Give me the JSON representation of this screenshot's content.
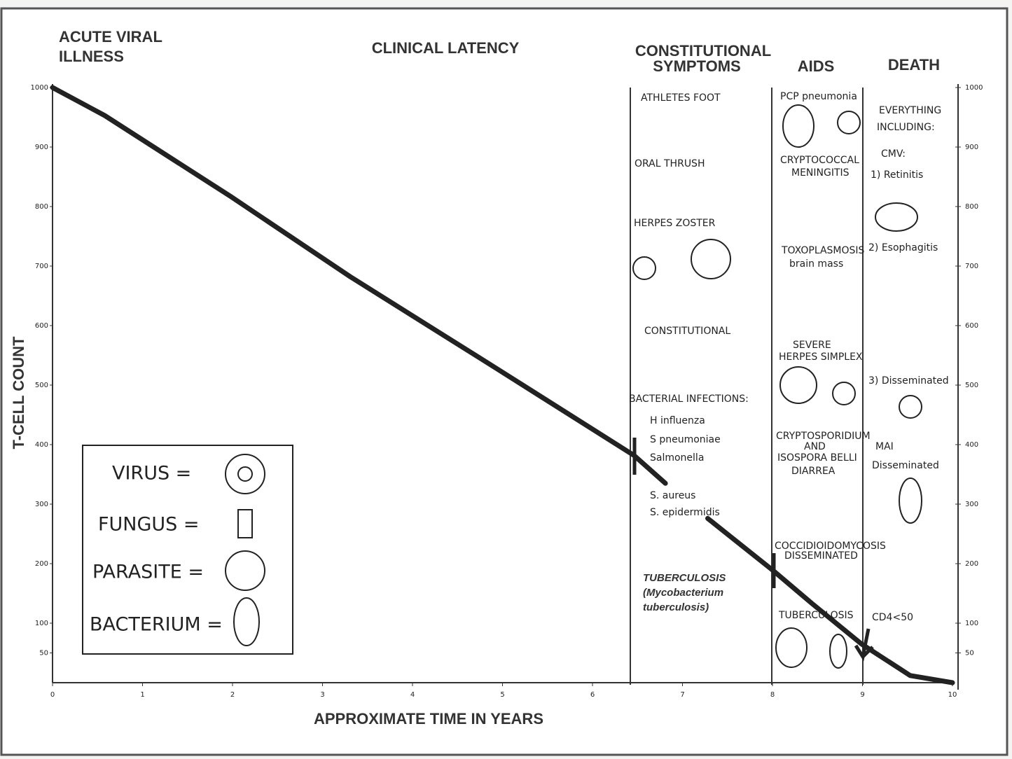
{
  "chart_data": {
    "type": "line",
    "phases": [
      "ACUTE VIRAL",
      "ILLNESS",
      "CLINICAL LATENCY",
      "CONSTITUTIONAL",
      "SYMPTOMS",
      "AIDS",
      "DEATH"
    ],
    "xlabel": "APPROXIMATE  TIME IN YEARS",
    "ylabel": "T-CELL COUNT",
    "x": [
      0,
      0.58,
      1.98,
      3.31,
      4.86,
      6.46,
      6.81,
      6.9,
      7.28,
      8.01,
      8.44,
      8.99,
      9.53,
      10
    ],
    "values": [
      1000,
      953,
      817,
      682,
      535,
      382,
      335,
      null,
      276,
      188,
      133,
      65,
      12,
      0
    ],
    "color": "#222222",
    "xlim": [
      0,
      10
    ],
    "ylim": [
      0,
      1000
    ],
    "xticks": [
      0,
      1,
      2,
      3,
      4,
      5,
      6,
      7,
      8,
      9,
      10
    ],
    "yticks": [
      50,
      100,
      200,
      300,
      400,
      500,
      600,
      700,
      800,
      900,
      1000
    ],
    "legend_box": [
      "VIRUS =",
      "FUNGUS =",
      "PARASITE =",
      "BACTERIUM ="
    ],
    "annotations": [
      "ATHLETES FOOT",
      "ORAL THRUSH",
      "HERPES ZOSTER",
      "CONSTITUTIONAL",
      "BACTERIAL INFECTIONS:",
      "H influenza",
      "S pneumoniae",
      "Salmonella",
      "S. aureus",
      "S. epidermidis",
      "TUBERCULOSIS",
      "(Mycobacterium",
      "tuberculosis)",
      "PCP pneumonia",
      "CRYPTOCOCCAL",
      "MENINGITIS",
      "TOXOPLASMOSIS",
      "brain mass",
      "SEVERE",
      "HERPES SIMPLEX",
      "CRYPTOSPORIDIUM",
      "AND",
      "ISOSPORA BELLI",
      "DIARREA",
      "COCCIDIOIDOMYCOSIS",
      "DISSEMINATED",
      "TUBERCULOSIS",
      "EVERYTHING",
      "INCLUDING:",
      "CMV:",
      "1) Retinitis",
      "2) Esophagitis",
      "3) Disseminated",
      "MAI",
      "Disseminated",
      "CD4<50"
    ]
  }
}
